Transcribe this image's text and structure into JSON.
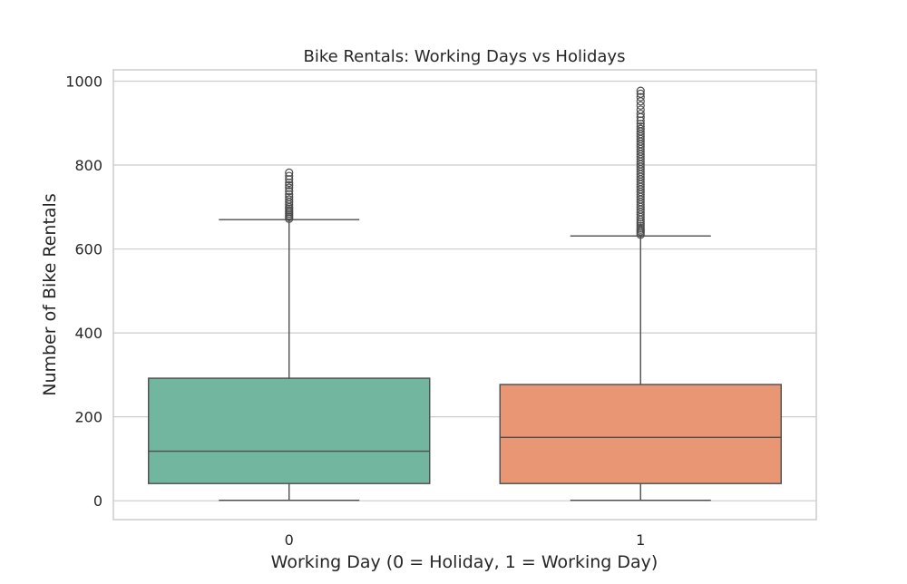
{
  "chart_data": {
    "type": "box",
    "title": "Bike Rentals: Working Days vs Holidays",
    "xlabel": "Working Day (0 = Holiday, 1 = Working Day)",
    "ylabel": "Number of Bike Rentals",
    "ylim": [
      -45,
      1027
    ],
    "yticks": [
      0,
      200,
      400,
      600,
      800,
      1000
    ],
    "grid": true,
    "categories": [
      "0",
      "1"
    ],
    "series": [
      {
        "category": "0",
        "color": "#73b6a0",
        "whisker_low": 1,
        "q1": 41,
        "median": 118,
        "q3": 292,
        "whisker_high": 670,
        "outliers": [
          672,
          676,
          680,
          684,
          688,
          692,
          696,
          700,
          706,
          712,
          718,
          724,
          730,
          738,
          746,
          752,
          758,
          766,
          774,
          782
        ]
      },
      {
        "category": "1",
        "color": "#e99675",
        "whisker_low": 1,
        "q1": 41,
        "median": 151,
        "q3": 277,
        "whisker_high": 631,
        "outliers": [
          634,
          638,
          642,
          646,
          650,
          655,
          660,
          665,
          670,
          676,
          682,
          688,
          694,
          700,
          706,
          712,
          718,
          724,
          730,
          736,
          742,
          748,
          754,
          760,
          766,
          772,
          778,
          784,
          790,
          796,
          802,
          808,
          814,
          820,
          826,
          832,
          838,
          844,
          850,
          856,
          862,
          868,
          874,
          880,
          886,
          892,
          898,
          906,
          914,
          922,
          932,
          942,
          952,
          962,
          970,
          977
        ]
      }
    ]
  }
}
